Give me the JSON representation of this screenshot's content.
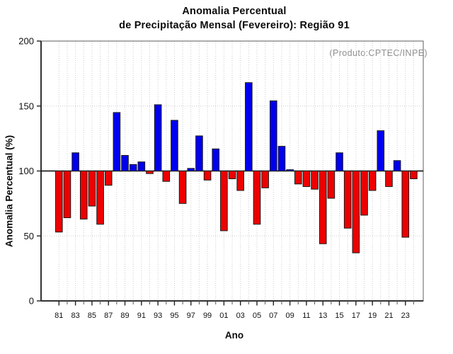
{
  "chart_data": {
    "type": "bar",
    "title_line1": "Anomalia Percentual",
    "title_line2": "de Precipitação Mensal (Fevereiro): Região 91",
    "annotation": "(Produto:CPTEC/INPE)",
    "xlabel": "Ano",
    "ylabel": "Anomalia Percentual (%)",
    "ylim": [
      0,
      200
    ],
    "yticks": [
      0,
      50,
      100,
      150,
      200
    ],
    "baseline": 100,
    "gridlines_horizontal": [
      50,
      150
    ],
    "grid": "dotted",
    "legend_position": "none",
    "x_tick_label_every": 2,
    "colors": {
      "above_baseline": "#0000EE",
      "below_baseline": "#EE0000",
      "bar_outline": "#1a1a1a",
      "baseline_line": "#000000",
      "gridline": "#cdcdcd",
      "frame": "#777777",
      "axis": "#333333",
      "annotation_text": "#8f8f8f"
    },
    "categories": [
      "81",
      "82",
      "83",
      "84",
      "85",
      "86",
      "87",
      "88",
      "89",
      "90",
      "91",
      "92",
      "93",
      "94",
      "95",
      "96",
      "97",
      "98",
      "99",
      "00",
      "01",
      "02",
      "03",
      "04",
      "05",
      "06",
      "07",
      "08",
      "09",
      "10",
      "11",
      "12",
      "13",
      "14",
      "15",
      "16",
      "17",
      "18",
      "19",
      "20",
      "21",
      "22",
      "23",
      "24"
    ],
    "values": [
      53,
      64,
      114,
      63,
      73,
      59,
      89,
      145,
      112,
      105,
      107,
      98,
      151,
      92,
      139,
      75,
      102,
      127,
      93,
      117,
      54,
      94,
      85,
      168,
      59,
      87,
      154,
      119,
      101,
      90,
      88,
      86,
      44,
      79,
      114,
      56,
      37,
      66,
      85,
      131,
      88,
      108,
      49,
      94
    ]
  }
}
